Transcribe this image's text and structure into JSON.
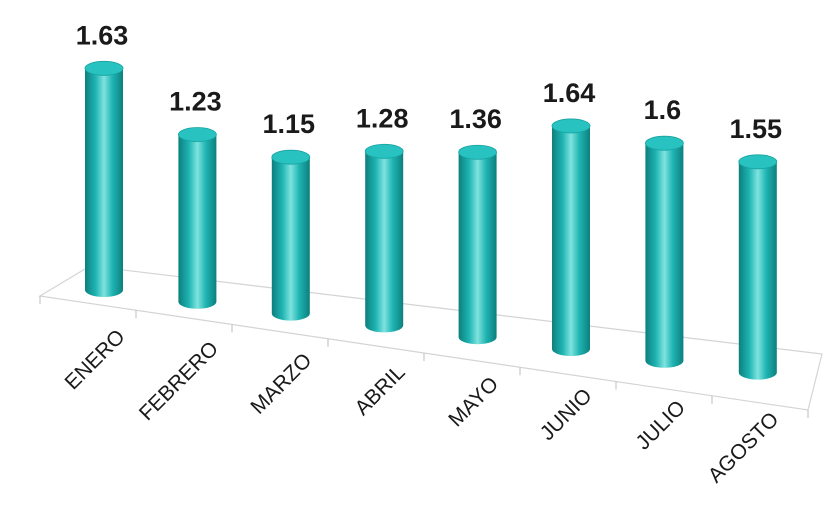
{
  "chart_data": {
    "type": "bar",
    "style": "3d-cylinder",
    "categories": [
      "ENERO",
      "FEBRERO",
      "MARZO",
      "ABRIL",
      "MAYO",
      "JUNIO",
      "JULIO",
      "AGOSTO"
    ],
    "values": [
      1.63,
      1.23,
      1.15,
      1.28,
      1.36,
      1.64,
      1.6,
      1.55
    ],
    "value_labels": [
      "1.63",
      "1.23",
      "1.15",
      "1.28",
      "1.36",
      "1.64",
      "1.6",
      "1.55"
    ],
    "title": "",
    "xlabel": "",
    "ylabel": "",
    "ylim": [
      0,
      1.7
    ],
    "grid": false,
    "legend": "none",
    "colors": {
      "bar": "#1fb5b3",
      "bar_light": "#7fe3df",
      "bar_dark": "#0c7f7d",
      "top": "#28c2c0"
    }
  }
}
